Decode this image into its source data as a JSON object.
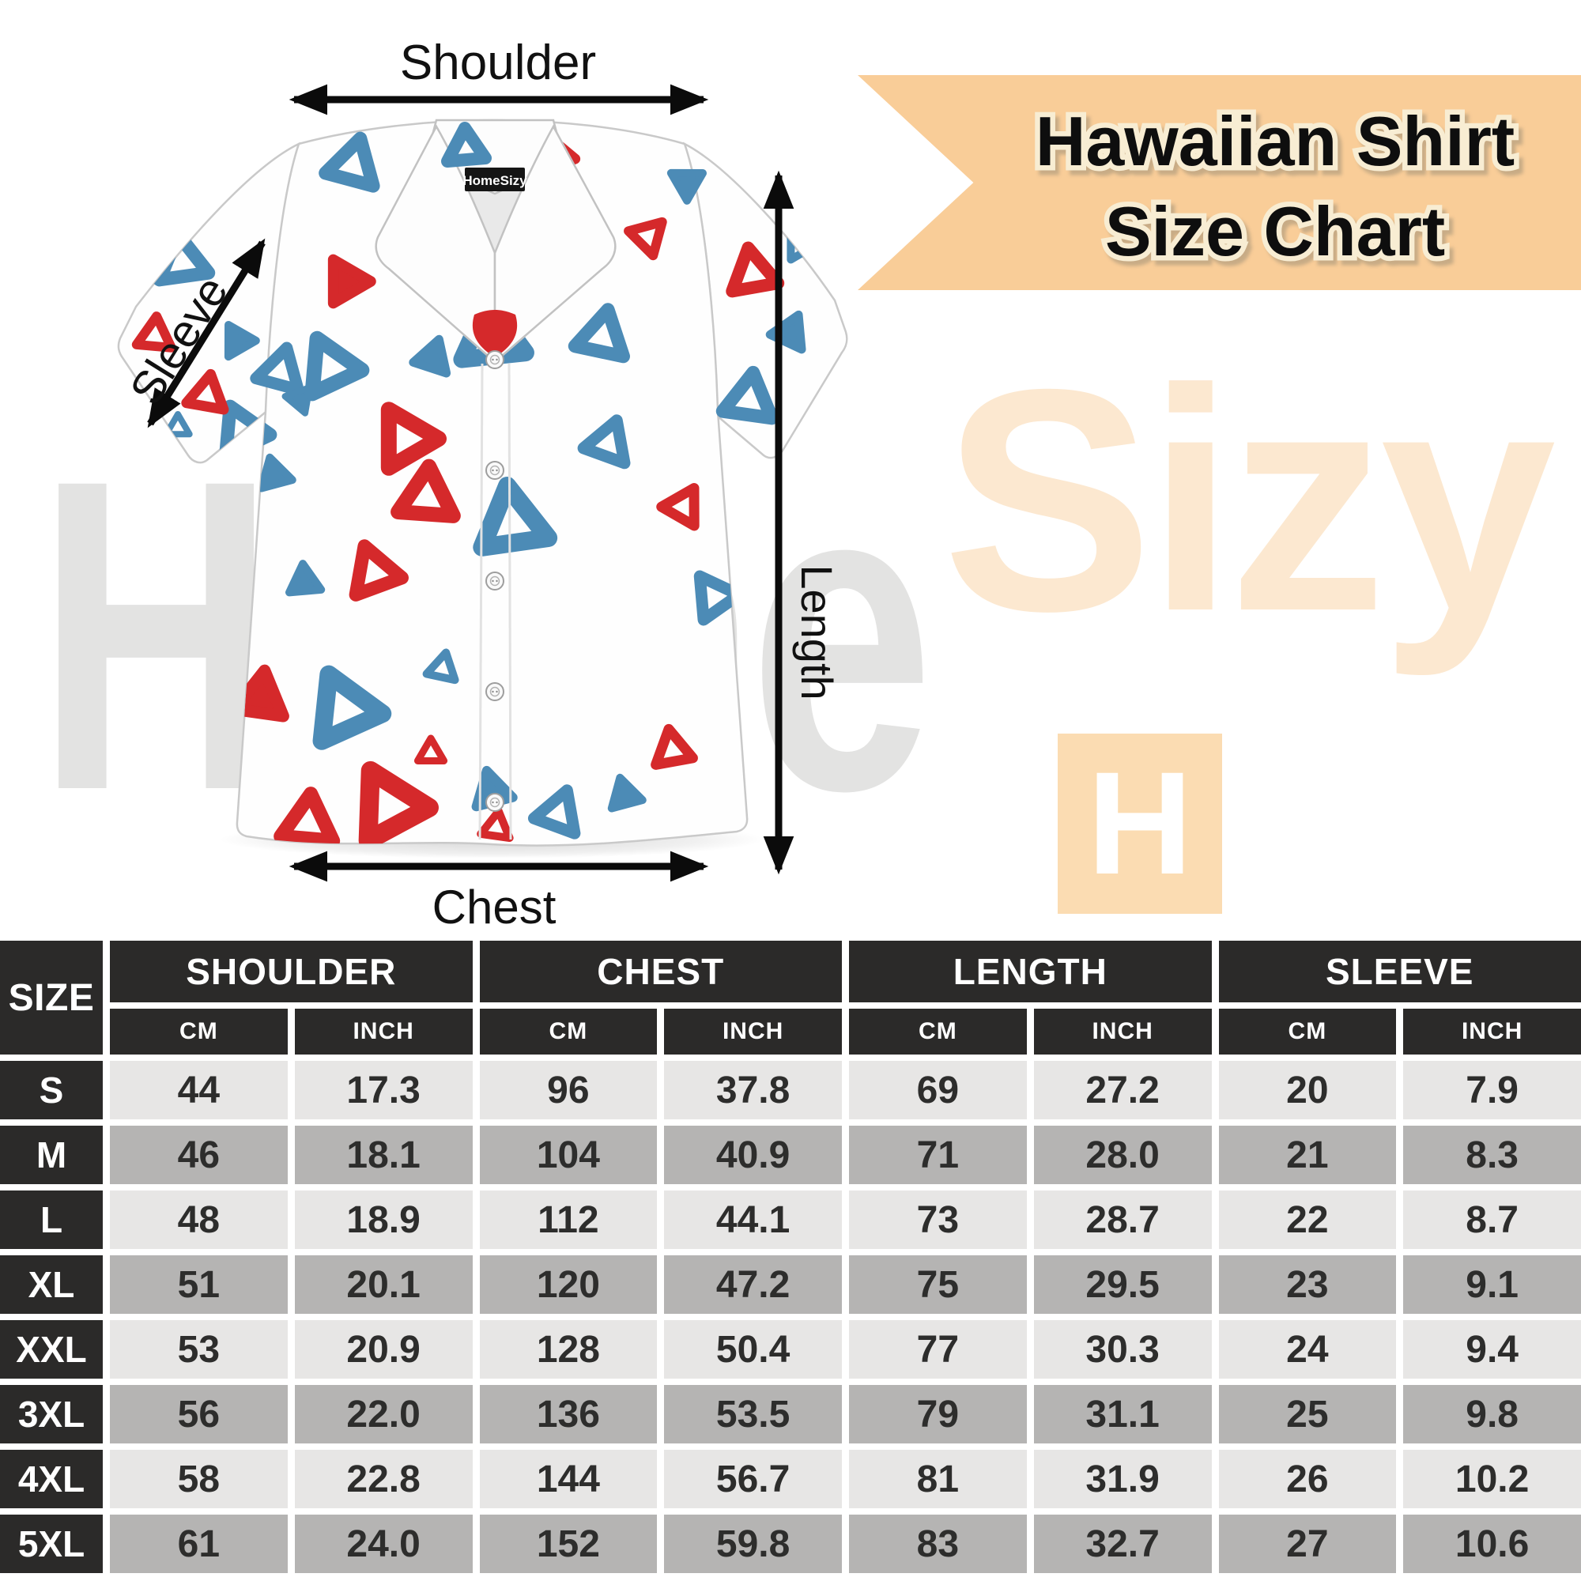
{
  "banner": {
    "line1": "Hawaiian Shirt",
    "line2": "Size Chart"
  },
  "watermark": {
    "home": "Home",
    "sizy": "Sizy",
    "logo_letter": "H"
  },
  "diagram": {
    "collar_label": "HomeSizy",
    "labels": {
      "shoulder": "Shoulder",
      "sleeve": "Sleeve",
      "length": "Length",
      "chest": "Chest"
    }
  },
  "table": {
    "corner": "SIZE",
    "groups": [
      "SHOULDER",
      "CHEST",
      "LENGTH",
      "SLEEVE"
    ],
    "units": [
      "CM",
      "INCH"
    ],
    "rows": [
      {
        "size": "S",
        "values": [
          "44",
          "17.3",
          "96",
          "37.8",
          "69",
          "27.2",
          "20",
          "7.9"
        ]
      },
      {
        "size": "M",
        "values": [
          "46",
          "18.1",
          "104",
          "40.9",
          "71",
          "28.0",
          "21",
          "8.3"
        ]
      },
      {
        "size": "L",
        "values": [
          "48",
          "18.9",
          "112",
          "44.1",
          "73",
          "28.7",
          "22",
          "8.7"
        ]
      },
      {
        "size": "XL",
        "values": [
          "51",
          "20.1",
          "120",
          "47.2",
          "75",
          "29.5",
          "23",
          "9.1"
        ]
      },
      {
        "size": "XXL",
        "values": [
          "53",
          "20.9",
          "128",
          "50.4",
          "77",
          "30.3",
          "24",
          "9.4"
        ]
      },
      {
        "size": "3XL",
        "values": [
          "56",
          "22.0",
          "136",
          "53.5",
          "79",
          "31.1",
          "25",
          "9.8"
        ]
      },
      {
        "size": "4XL",
        "values": [
          "58",
          "22.8",
          "144",
          "56.7",
          "81",
          "31.9",
          "26",
          "10.2"
        ]
      },
      {
        "size": "5XL",
        "values": [
          "61",
          "24.0",
          "152",
          "59.8",
          "83",
          "32.7",
          "27",
          "10.6"
        ]
      }
    ]
  },
  "chart_data": {
    "type": "table",
    "title": "Hawaiian Shirt Size Chart",
    "columns": [
      "SIZE",
      "SHOULDER CM",
      "SHOULDER INCH",
      "CHEST CM",
      "CHEST INCH",
      "LENGTH CM",
      "LENGTH INCH",
      "SLEEVE CM",
      "SLEEVE INCH"
    ],
    "rows": [
      [
        "S",
        "44",
        "17.3",
        "96",
        "37.8",
        "69",
        "27.2",
        "20",
        "7.9"
      ],
      [
        "M",
        "46",
        "18.1",
        "104",
        "40.9",
        "71",
        "28.0",
        "21",
        "8.3"
      ],
      [
        "L",
        "48",
        "18.9",
        "112",
        "44.1",
        "73",
        "28.7",
        "22",
        "8.7"
      ],
      [
        "XL",
        "51",
        "20.1",
        "120",
        "47.2",
        "75",
        "29.5",
        "23",
        "9.1"
      ],
      [
        "XXL",
        "53",
        "20.9",
        "128",
        "50.4",
        "77",
        "30.3",
        "24",
        "9.4"
      ],
      [
        "3XL",
        "56",
        "22.0",
        "136",
        "53.5",
        "79",
        "31.1",
        "25",
        "9.8"
      ],
      [
        "4XL",
        "58",
        "22.8",
        "144",
        "56.7",
        "81",
        "31.9",
        "26",
        "10.2"
      ],
      [
        "5XL",
        "61",
        "24.0",
        "152",
        "59.8",
        "83",
        "32.7",
        "27",
        "10.6"
      ]
    ]
  },
  "colors": {
    "banner_bg": "#F9CD98",
    "banner_text_outline": "#F8EDD3",
    "watermark_gray": "#E3E3E2",
    "watermark_peach": "#FCE8D0",
    "logo_bg": "#FBDCB2",
    "header_bg": "#2B2A29",
    "row_light": "#E7E6E5",
    "row_dark": "#B5B4B3",
    "pattern_red": "#D5292B",
    "pattern_blue": "#4C8BB6"
  }
}
